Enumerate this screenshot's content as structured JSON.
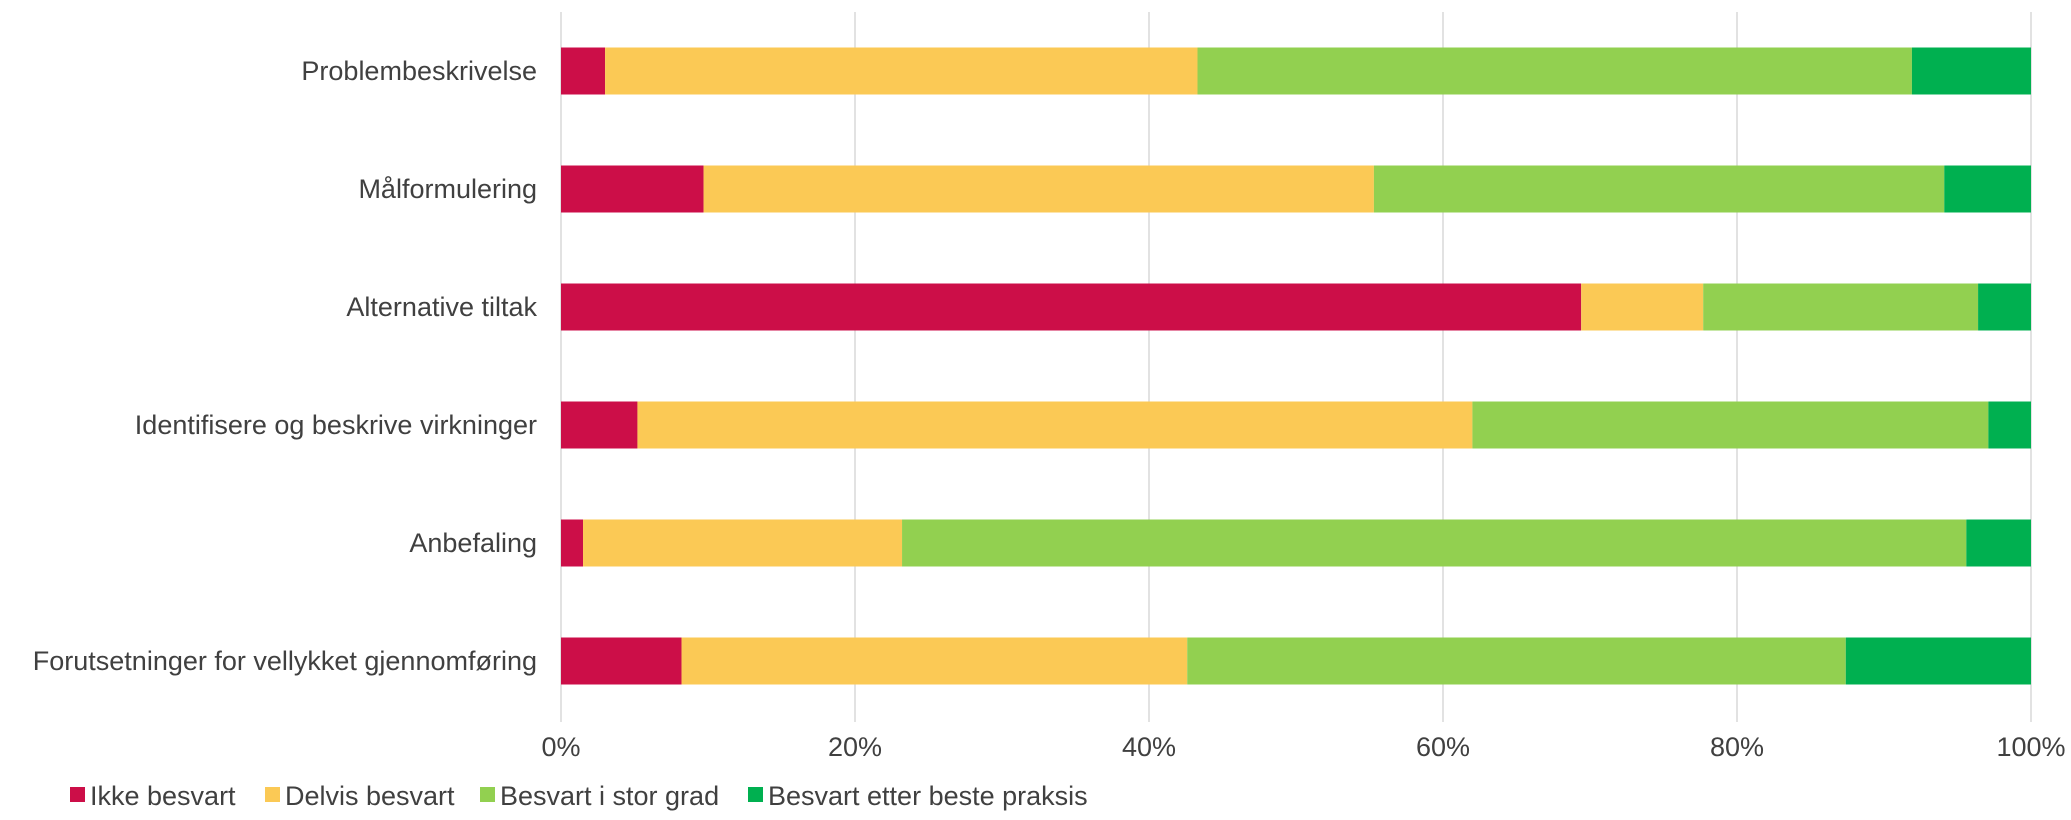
{
  "chart_data": {
    "type": "bar",
    "orientation": "horizontal",
    "stacked": true,
    "percent_stacked": true,
    "categories": [
      "Problembeskrivelse",
      "Målformulering",
      "Alternative tiltak",
      "Identifisere og beskrive virkninger",
      "Anbefaling",
      "Forutsetninger for vellykket gjennomføring"
    ],
    "series": [
      {
        "name": "Ikke besvart",
        "color": "#cc0e48",
        "values": [
          3,
          9.7,
          69.4,
          5.2,
          1.5,
          8.2
        ]
      },
      {
        "name": "Delvis besvart",
        "color": "#fbc955",
        "values": [
          40.3,
          45.6,
          8.3,
          56.8,
          21.7,
          34.4
        ]
      },
      {
        "name": "Besvart i stor grad",
        "color": "#92d050",
        "values": [
          48.6,
          38.8,
          18.7,
          35.1,
          72.4,
          44.8
        ]
      },
      {
        "name": "Besvart etter beste praksis",
        "color": "#00b050",
        "values": [
          8.1,
          5.9,
          3.6,
          2.9,
          4.4,
          12.6
        ]
      }
    ],
    "x_ticks": [
      "0%",
      "20%",
      "40%",
      "60%",
      "80%",
      "100%"
    ],
    "xlim": [
      0,
      100
    ],
    "grid": "vertical",
    "legend": "bottom-left",
    "title": "",
    "xlabel": "",
    "ylabel": ""
  }
}
